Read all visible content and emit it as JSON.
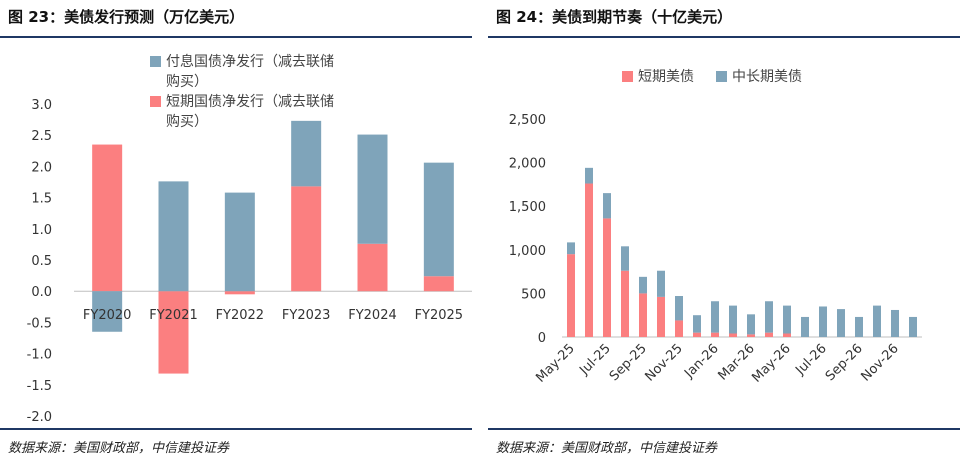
{
  "left": {
    "title": "图 23：美债发行预测（万亿美元）",
    "source": "数据来源：美国财政部，中信建投证券"
  },
  "right": {
    "title": "图 24：美债到期节奏（十亿美元）",
    "source": "数据来源：美国财政部，中信建投证券"
  },
  "colors": {
    "long": "#7fa4ba",
    "short": "#fb7f80",
    "rule": "#1f3864"
  },
  "chart_data": [
    {
      "type": "bar",
      "stacked": true,
      "categories": [
        "FY2020",
        "FY2021",
        "FY2022",
        "FY2023",
        "FY2024",
        "FY2025"
      ],
      "series": [
        {
          "name": "付息国债净发行（减去联储购买）",
          "values": [
            -0.65,
            1.76,
            1.58,
            1.05,
            1.75,
            1.82
          ]
        },
        {
          "name": "短期国债净发行（减去联储购买）",
          "values": [
            2.35,
            -1.32,
            -0.05,
            1.68,
            0.76,
            0.24
          ]
        }
      ],
      "yticks": [
        "3.0",
        "2.5",
        "2.0",
        "1.5",
        "1.0",
        "0.5",
        "0.0",
        "-0.5",
        "-1.0",
        "-1.5",
        "-2.0"
      ],
      "ylim": [
        -2.0,
        3.0
      ],
      "legend": "top",
      "grid": false
    },
    {
      "type": "bar",
      "stacked": true,
      "categories": [
        "May-25",
        "Jun-25",
        "Jul-25",
        "Aug-25",
        "Sep-25",
        "Oct-25",
        "Nov-25",
        "Dec-25",
        "Jan-26",
        "Feb-26",
        "Mar-26",
        "Apr-26",
        "May-26",
        "Jun-26",
        "Jul-26",
        "Aug-26",
        "Sep-26",
        "Oct-26",
        "Nov-26",
        "Dec-26"
      ],
      "xtick_labels": [
        "May-25",
        "Jul-25",
        "Sep-25",
        "Nov-25",
        "Jan-26",
        "Mar-26",
        "May-26",
        "Jul-26",
        "Sep-26",
        "Nov-26"
      ],
      "series": [
        {
          "name": "短期美债",
          "values": [
            950,
            1760,
            1360,
            760,
            500,
            460,
            190,
            50,
            50,
            40,
            30,
            50,
            40,
            0,
            0,
            0,
            0,
            0,
            0,
            0
          ]
        },
        {
          "name": "中长期美债",
          "values": [
            135,
            180,
            290,
            280,
            190,
            300,
            280,
            200,
            360,
            320,
            230,
            360,
            320,
            230,
            350,
            320,
            230,
            360,
            310,
            230
          ]
        }
      ],
      "yticks": [
        "2,500",
        "2,000",
        "1,500",
        "1,000",
        "500",
        "0"
      ],
      "ylim": [
        0,
        2500
      ],
      "legend": "top",
      "grid": false
    }
  ]
}
